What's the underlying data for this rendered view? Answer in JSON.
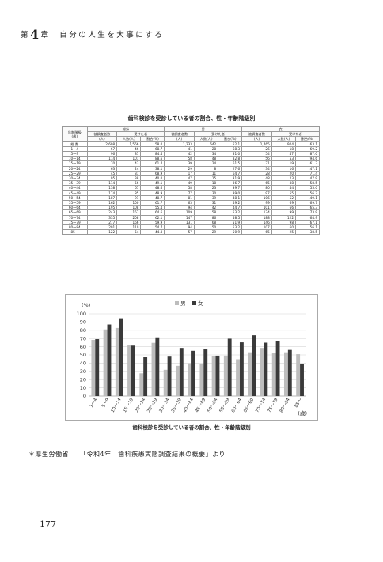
{
  "header": {
    "chapter_prefix": "第",
    "chapter_number": "4",
    "chapter_suffix": "章",
    "chapter_title": "自分の人生を大事にする"
  },
  "table": {
    "title": "歯科検診を受診している者の割合、性・年齢階級別",
    "col_age": "年齢階級",
    "col_age_unit": "(歳)",
    "grp_total": "総計",
    "grp_male": "男",
    "grp_female": "女",
    "col_surveyed": "被調査者数",
    "col_persons_unit": "(人)",
    "col_received": "受けた者",
    "col_count": "人数(人)",
    "col_ratio": "割合(%)",
    "rows": [
      {
        "age": "総 数",
        "t": "2,698",
        "tr": "1,566",
        "tp": "58.0",
        "m": "1,233",
        "mr": "642",
        "mp": "52.1",
        "f": "1,465",
        "fr": "924",
        "fp": "63.1"
      },
      {
        "age": "1～4",
        "t": "67",
        "tr": "46",
        "tp": "68.7",
        "m": "41",
        "mr": "28",
        "mp": "68.3",
        "f": "26",
        "fr": "18",
        "fp": "69.2"
      },
      {
        "age": "5～9",
        "t": "96",
        "tr": "81",
        "tp": "84.4",
        "m": "42",
        "mr": "34",
        "mp": "81.0",
        "f": "54",
        "fr": "47",
        "fp": "87.0"
      },
      {
        "age": "10～14",
        "t": "114",
        "tr": "101",
        "tp": "88.6",
        "m": "58",
        "mr": "48",
        "mp": "82.8",
        "f": "56",
        "fr": "53",
        "fp": "94.6"
      },
      {
        "age": "15～19",
        "t": "70",
        "tr": "43",
        "tp": "61.4",
        "m": "39",
        "mr": "24",
        "mp": "61.5",
        "f": "31",
        "fr": "19",
        "fp": "61.3"
      },
      {
        "age": "20～24",
        "t": "63",
        "tr": "24",
        "tp": "38.1",
        "m": "29",
        "mr": "8",
        "mp": "27.6",
        "f": "34",
        "fr": "16",
        "fp": "47.1"
      },
      {
        "age": "25～29",
        "t": "45",
        "tr": "31",
        "tp": "68.9",
        "m": "17",
        "mr": "11",
        "mp": "64.7",
        "f": "28",
        "fr": "20",
        "fp": "71.4"
      },
      {
        "age": "30～34",
        "t": "95",
        "tr": "38",
        "tp": "40.0",
        "m": "47",
        "mr": "15",
        "mp": "31.9",
        "f": "48",
        "fr": "23",
        "fp": "47.9"
      },
      {
        "age": "35～39",
        "t": "114",
        "tr": "56",
        "tp": "49.1",
        "m": "49",
        "mr": "18",
        "mp": "36.7",
        "f": "65",
        "fr": "38",
        "fp": "58.5"
      },
      {
        "age": "40～44",
        "t": "138",
        "tr": "67",
        "tp": "48.6",
        "m": "58",
        "mr": "23",
        "mp": "39.7",
        "f": "80",
        "fr": "44",
        "fp": "55.0"
      },
      {
        "age": "45～49",
        "t": "174",
        "tr": "85",
        "tp": "48.9",
        "m": "77",
        "mr": "30",
        "mp": "39.0",
        "f": "97",
        "fr": "55",
        "fp": "56.7"
      },
      {
        "age": "50～54",
        "t": "187",
        "tr": "91",
        "tp": "48.7",
        "m": "81",
        "mr": "39",
        "mp": "48.1",
        "f": "106",
        "fr": "52",
        "fp": "49.1"
      },
      {
        "age": "55～59",
        "t": "162",
        "tr": "100",
        "tp": "61.7",
        "m": "63",
        "mr": "31",
        "mp": "49.2",
        "f": "99",
        "fr": "69",
        "fp": "69.7"
      },
      {
        "age": "60～64",
        "t": "195",
        "tr": "108",
        "tp": "55.4",
        "m": "94",
        "mr": "42",
        "mp": "44.7",
        "f": "101",
        "fr": "66",
        "fp": "65.3"
      },
      {
        "age": "65～69",
        "t": "243",
        "tr": "157",
        "tp": "64.6",
        "m": "109",
        "mr": "58",
        "mp": "53.2",
        "f": "134",
        "fr": "99",
        "fp": "73.9"
      },
      {
        "age": "70～74",
        "t": "335",
        "tr": "208",
        "tp": "62.1",
        "m": "147",
        "mr": "86",
        "mp": "58.5",
        "f": "188",
        "fr": "122",
        "fp": "64.9"
      },
      {
        "age": "75～79",
        "t": "277",
        "tr": "166",
        "tp": "59.9",
        "m": "131",
        "mr": "68",
        "mp": "51.9",
        "f": "146",
        "fr": "98",
        "fp": "67.1"
      },
      {
        "age": "80～84",
        "t": "201",
        "tr": "110",
        "tp": "54.7",
        "m": "94",
        "mr": "50",
        "mp": "53.2",
        "f": "107",
        "fr": "60",
        "fp": "56.1"
      },
      {
        "age": "85～",
        "t": "122",
        "tr": "54",
        "tp": "44.3",
        "m": "57",
        "mr": "29",
        "mp": "50.9",
        "f": "65",
        "fr": "25",
        "fp": "38.5"
      }
    ]
  },
  "chart_data": {
    "type": "bar",
    "title": "歯科検診を受診している者の割合、性・年齢階級別",
    "ylabel": "(%)",
    "xlabel": "(歳)",
    "ylim": [
      0,
      100
    ],
    "yticks": [
      "0",
      "10",
      "20",
      "30",
      "40",
      "50",
      "60",
      "70",
      "80",
      "90",
      "100"
    ],
    "grid": true,
    "legend": "top-center",
    "categories": [
      "1～4",
      "5～9",
      "10～14",
      "15～19",
      "20～24",
      "25～29",
      "30～34",
      "35～39",
      "40～44",
      "45～49",
      "50～54",
      "55～59",
      "60～64",
      "65～69",
      "70～74",
      "75～79",
      "80～84",
      "85～"
    ],
    "series": [
      {
        "name": "男",
        "color": "#bdbdbd",
        "values": [
          68.3,
          81.0,
          82.8,
          61.5,
          27.6,
          64.7,
          31.9,
          36.7,
          39.7,
          39.0,
          48.1,
          49.2,
          44.7,
          53.2,
          58.5,
          51.9,
          53.2,
          50.9
        ]
      },
      {
        "name": "女",
        "color": "#3a3a3a",
        "values": [
          69.2,
          87.0,
          94.6,
          61.3,
          47.1,
          71.4,
          47.9,
          58.5,
          55.0,
          56.7,
          49.1,
          69.7,
          65.3,
          73.9,
          64.9,
          67.1,
          56.1,
          38.5
        ]
      }
    ]
  },
  "footer": {
    "source_org": "＊厚生労働省",
    "source_doc": "「令和4年　歯科疾患実態調査結果の概要」より",
    "page_number": "177"
  }
}
